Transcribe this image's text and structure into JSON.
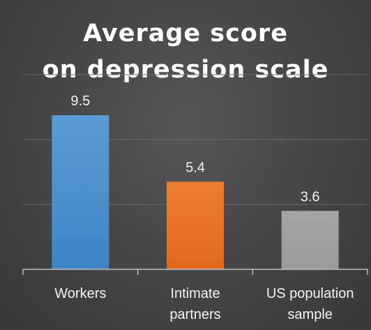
{
  "chart_data": {
    "type": "bar",
    "title_lines": [
      "Average score",
      "on depression scale"
    ],
    "categories": [
      [
        "Workers"
      ],
      [
        "Intimate",
        "partners"
      ],
      [
        "US population",
        "sample"
      ]
    ],
    "values": [
      9.5,
      5.4,
      3.6
    ],
    "value_labels": [
      "9.5",
      "5.4",
      "3.6"
    ],
    "ylim": [
      0,
      12
    ],
    "gridlines": [
      4,
      8,
      12
    ],
    "grid": true,
    "legend": "none",
    "colors": {
      "bars": [
        "#5b9bd5",
        "#ed7d31",
        "#a5a5a5"
      ],
      "bars_dark": [
        "#3d84c6",
        "#e0691c",
        "#9a9a9a"
      ],
      "grid": "#6a6a6a",
      "axis": "#bfbfbf",
      "text": "#f2f2f2",
      "background": "#474747"
    }
  }
}
